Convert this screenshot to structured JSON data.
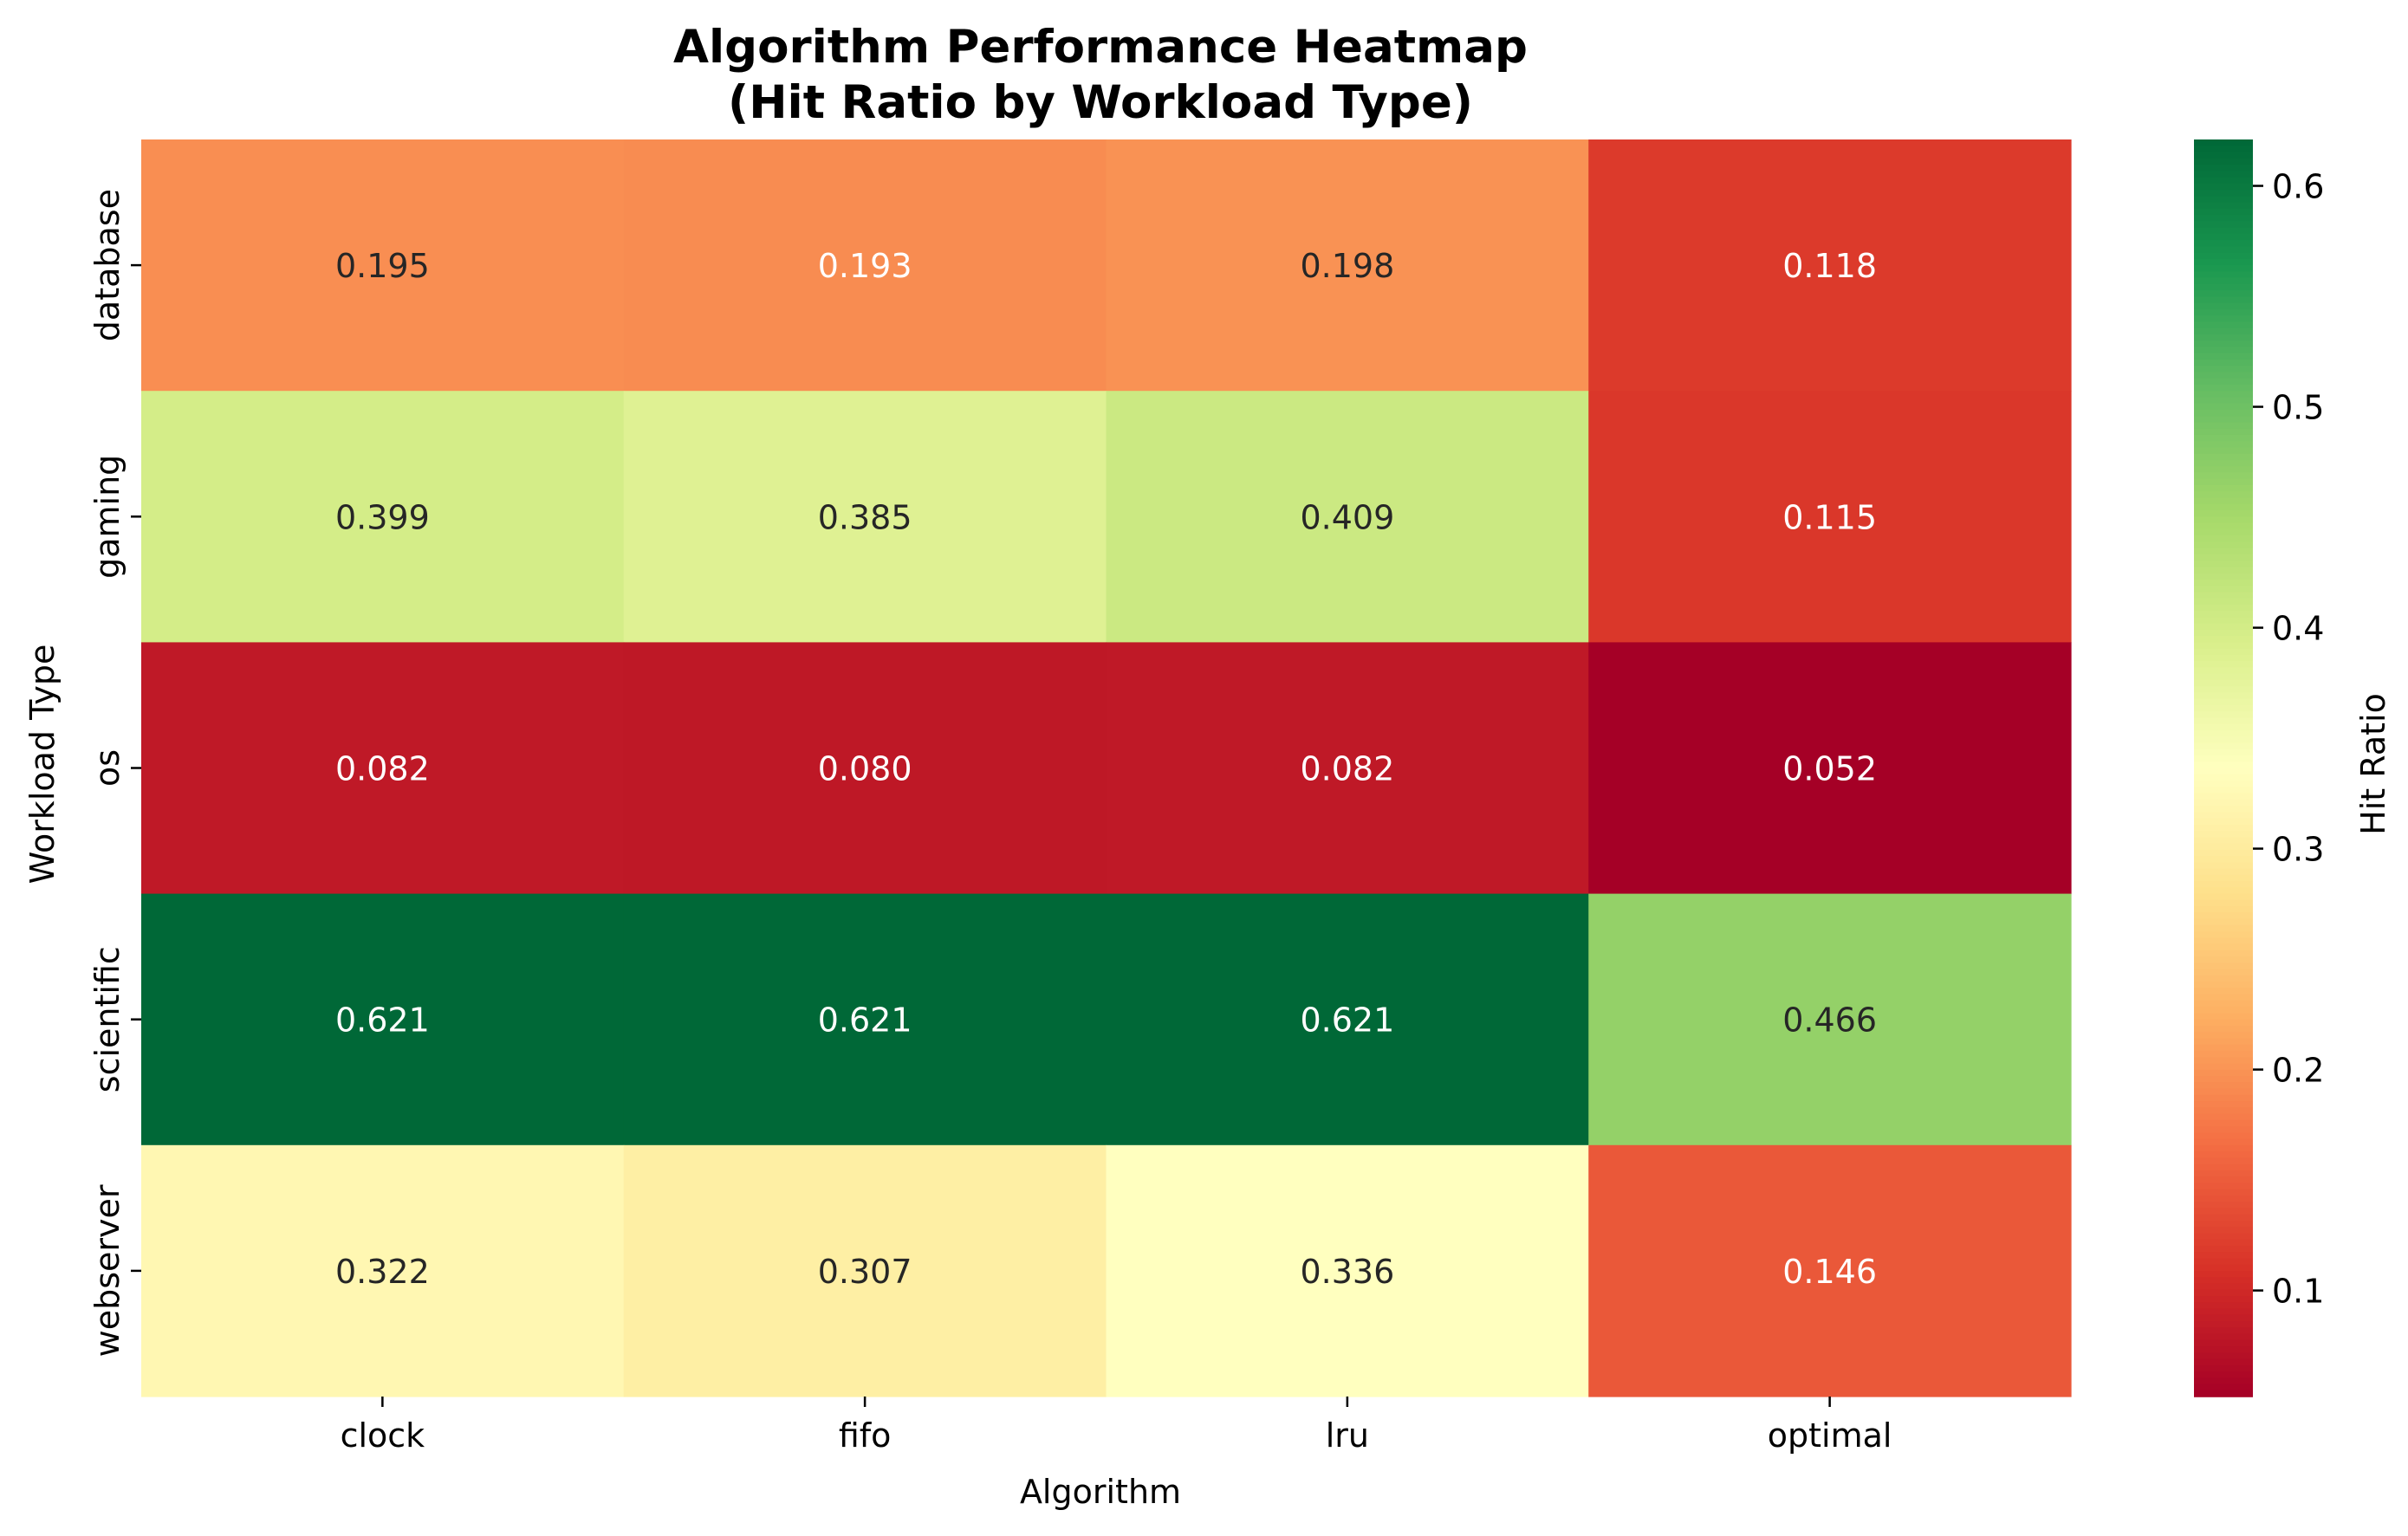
{
  "chart_data": {
    "type": "heatmap",
    "title_line1": "Algorithm Performance Heatmap",
    "title_line2": "(Hit Ratio by Workload Type)",
    "xlabel": "Algorithm",
    "ylabel": "Workload Type",
    "colorbar_label": "Hit Ratio",
    "colormap": "RdYlGn",
    "x_categories": [
      "clock",
      "fifo",
      "lru",
      "optimal"
    ],
    "y_categories": [
      "database",
      "gaming",
      "os",
      "scientific",
      "webserver"
    ],
    "values": [
      [
        0.195,
        0.193,
        0.198,
        0.118
      ],
      [
        0.399,
        0.385,
        0.409,
        0.115
      ],
      [
        0.082,
        0.08,
        0.082,
        0.052
      ],
      [
        0.621,
        0.621,
        0.621,
        0.466
      ],
      [
        0.322,
        0.307,
        0.336,
        0.146
      ]
    ],
    "value_labels": [
      [
        "0.195",
        "0.193",
        "0.198",
        "0.118"
      ],
      [
        "0.399",
        "0.385",
        "0.409",
        "0.115"
      ],
      [
        "0.082",
        "0.080",
        "0.082",
        "0.052"
      ],
      [
        "0.621",
        "0.621",
        "0.621",
        "0.466"
      ],
      [
        "0.322",
        "0.307",
        "0.336",
        "0.146"
      ]
    ],
    "color_range": [
      0.052,
      0.621
    ],
    "colorbar_ticks": [
      0.1,
      0.2,
      0.3,
      0.4,
      0.5,
      0.6
    ],
    "colorbar_tick_labels": [
      "0.1",
      "0.2",
      "0.3",
      "0.4",
      "0.5",
      "0.6"
    ]
  }
}
